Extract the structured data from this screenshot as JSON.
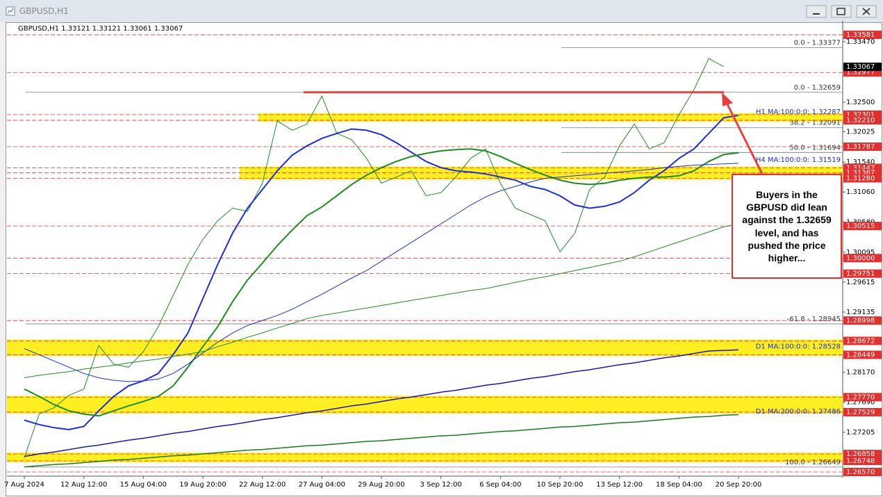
{
  "window_title": "GBPUSD,H1",
  "chart_data": {
    "type": "line",
    "header": "GBPUSD,H1  1.33121 1.33121 1.33061 1.33067",
    "categories": [
      "7 Aug 2024",
      null,
      null,
      null,
      "12 Aug 12:00",
      null,
      null,
      null,
      "15 Aug 04:00",
      null,
      null,
      null,
      "19 Aug 20:00",
      null,
      null,
      null,
      "22 Aug 12:00",
      null,
      null,
      null,
      "27 Aug 04:00",
      null,
      null,
      null,
      "29 Aug 20:00",
      null,
      null,
      null,
      "3 Sep 12:00",
      null,
      null,
      null,
      "6 Sep 04:00",
      null,
      null,
      null,
      "10 Sep 20:00",
      null,
      null,
      null,
      "13 Sep 12:00",
      null,
      null,
      null,
      "18 Sep 04:00",
      null,
      null,
      null,
      "20 Sep 20:00"
    ],
    "series": [
      {
        "color": "#1f8a1f",
        "width": 1,
        "values": [
          1.268,
          1.275,
          1.276,
          1.278,
          1.279,
          1.286,
          1.283,
          1.2825,
          1.285,
          1.289,
          1.294,
          1.299,
          1.303,
          1.306,
          1.308,
          1.3075,
          1.312,
          1.322,
          1.3205,
          1.3215,
          1.326,
          1.32,
          1.319,
          1.316,
          1.312,
          1.313,
          1.314,
          1.31,
          1.3105,
          1.313,
          1.316,
          1.3175,
          1.312,
          1.308,
          1.307,
          1.306,
          1.301,
          1.304,
          1.311,
          1.313,
          1.318,
          1.3215,
          1.3175,
          1.3185,
          1.323,
          1.327,
          1.332,
          1.3307,
          null
        ]
      },
      {
        "color": "#1c2fd0",
        "width": 2,
        "values": [
          1.274,
          1.2733,
          1.2728,
          1.2725,
          1.273,
          1.2755,
          1.2778,
          1.2795,
          1.2803,
          1.2815,
          1.2845,
          1.288,
          1.2935,
          1.299,
          1.304,
          1.308,
          1.311,
          1.314,
          1.3165,
          1.318,
          1.3192,
          1.32,
          1.3207,
          1.3205,
          1.3198,
          1.3185,
          1.317,
          1.3155,
          1.3145,
          1.314,
          1.3138,
          1.3135,
          1.313,
          1.3125,
          1.3115,
          1.311,
          1.31,
          1.3085,
          1.308,
          1.3083,
          1.309,
          1.3105,
          1.3125,
          1.314,
          1.316,
          1.3175,
          1.32,
          1.3225,
          1.3229
        ]
      },
      {
        "color": "#1f8a1f",
        "width": 2,
        "values": [
          1.279,
          1.2778,
          1.2765,
          1.2755,
          1.275,
          1.2747,
          1.2755,
          1.2763,
          1.277,
          1.2778,
          1.2795,
          1.2825,
          1.2858,
          1.289,
          1.293,
          1.2965,
          1.2992,
          1.302,
          1.3045,
          1.3068,
          1.3082,
          1.31,
          1.3118,
          1.3133,
          1.3145,
          1.3155,
          1.3163,
          1.3168,
          1.3172,
          1.3174,
          1.3175,
          1.3172,
          1.3163,
          1.3152,
          1.3142,
          1.3133,
          1.3125,
          1.312,
          1.3118,
          1.312,
          1.3125,
          1.3128,
          1.313,
          1.313,
          1.3132,
          1.314,
          1.3155,
          1.3166,
          1.3169
        ]
      },
      {
        "color": "#1c2fd0",
        "width": 1,
        "values": [
          1.2855,
          1.2845,
          1.2835,
          1.2825,
          1.2815,
          1.2808,
          1.2804,
          1.2802,
          1.2803,
          1.2806,
          1.2815,
          1.283,
          1.2848,
          1.2865,
          1.288,
          1.2892,
          1.29,
          1.2908,
          1.2918,
          1.293,
          1.2942,
          1.2955,
          1.2968,
          1.298,
          1.2995,
          1.301,
          1.3025,
          1.304,
          1.3055,
          1.307,
          1.3085,
          1.3098,
          1.3108,
          1.3115,
          1.3122,
          1.3128,
          1.313,
          1.3132,
          1.3134,
          1.3136,
          1.3138,
          1.314,
          1.3142,
          1.3145,
          1.3147,
          1.3149,
          1.315,
          1.3151,
          1.3152
        ]
      },
      {
        "color": "#1f8a1f",
        "width": 1,
        "values": [
          1.2808,
          1.2812,
          1.2815,
          1.2818,
          1.2822,
          1.2825,
          1.2828,
          1.2832,
          1.2835,
          1.2838,
          1.2842,
          1.2846,
          1.285,
          1.2858,
          1.2865,
          1.2873,
          1.288,
          1.2888,
          1.2895,
          1.2903,
          1.2908,
          1.2912,
          1.2916,
          1.292,
          1.2924,
          1.2928,
          1.2932,
          1.2936,
          1.294,
          1.2944,
          1.2948,
          1.2951,
          1.2956,
          1.2961,
          1.2966,
          1.297,
          1.2975,
          1.298,
          1.2985,
          1.299,
          1.2995,
          1.3002,
          1.301,
          1.3018,
          1.3026,
          1.3034,
          1.3042,
          1.305,
          1.3055
        ]
      },
      {
        "color": "#1a1aa0",
        "width": 1.5,
        "values": [
          1.2682,
          1.2686,
          1.2689,
          1.2693,
          1.2697,
          1.27,
          1.2704,
          1.2708,
          1.2711,
          1.2715,
          1.2719,
          1.2722,
          1.2726,
          1.273,
          1.2733,
          1.2737,
          1.2741,
          1.2744,
          1.2748,
          1.2752,
          1.2755,
          1.2759,
          1.2763,
          1.2766,
          1.277,
          1.2774,
          1.2777,
          1.2781,
          1.2785,
          1.2788,
          1.2792,
          1.2796,
          1.2799,
          1.2803,
          1.2807,
          1.281,
          1.2814,
          1.2818,
          1.2821,
          1.2825,
          1.2829,
          1.2832,
          1.2836,
          1.284,
          1.2843,
          1.2847,
          1.2851,
          1.2852,
          1.2853
        ]
      },
      {
        "color": "#1a7a1a",
        "width": 1.5,
        "values": [
          1.2665,
          1.2667,
          1.2669,
          1.267,
          1.2672,
          1.2674,
          1.2676,
          1.2677,
          1.2679,
          1.2681,
          1.2683,
          1.2684,
          1.2686,
          1.2688,
          1.269,
          1.2692,
          1.2693,
          1.2695,
          1.2697,
          1.2699,
          1.27,
          1.2702,
          1.2704,
          1.2706,
          1.2707,
          1.2709,
          1.2711,
          1.2713,
          1.2715,
          1.2716,
          1.2718,
          1.272,
          1.2722,
          1.2723,
          1.2725,
          1.2727,
          1.2729,
          1.273,
          1.2732,
          1.2734,
          1.2736,
          1.2737,
          1.2739,
          1.2741,
          1.2743,
          1.2745,
          1.2746,
          1.2748,
          1.2749
        ]
      }
    ],
    "ylim": [
      1.26503,
      1.3376
    ],
    "yticks": [
      {
        "value": 1.3347,
        "label": "1.33470"
      },
      {
        "value": 1.325,
        "label": "1.32500"
      },
      {
        "value": 1.32025,
        "label": "1.32025"
      },
      {
        "value": 1.3154,
        "label": "1.31540"
      },
      {
        "value": 1.3106,
        "label": "1.31060"
      },
      {
        "value": 1.3058,
        "label": "1.30580"
      },
      1.30095,
      1.29615,
      1.29135,
      {
        "value": 1.2817,
        "label": "1.28170"
      },
      {
        "value": 1.2769,
        "label": "1.27690"
      },
      1.27205
    ],
    "levels": [
      1.33581,
      1.32977,
      1.32301,
      1.3221,
      1.31787,
      1.31447,
      1.31367,
      1.3128,
      1.30515,
      1.3,
      1.29751,
      1.28998,
      1.28672,
      1.28449,
      1.2777,
      1.27529,
      1.26858,
      1.26748,
      1.2657
    ],
    "level_labels": [
      "1.33581",
      "1.32977",
      "1.32301",
      "1.32210",
      "1.31787",
      "1.31447",
      "1.31367",
      "1.31280",
      "1.30515",
      "1.30000",
      "1.29751",
      "1.28998",
      "1.28672",
      "1.28449",
      "1.27770",
      "1.27529",
      "1.26858",
      "1.26748",
      "1.26570"
    ],
    "level_color": "#e03030",
    "current_price": {
      "value": 1.33067,
      "label": "1.33067"
    },
    "zones": [
      [
        1.3221,
        1.32301
      ],
      [
        1.3128,
        1.31447
      ],
      [
        1.28449,
        1.28672
      ],
      [
        1.27529,
        1.2777
      ],
      [
        1.26748,
        1.26858
      ]
    ],
    "zone_color": "#ffee22",
    "fib": [
      {
        "value": 1.33377,
        "label": "0.0 - 1.33377"
      },
      {
        "value": 1.32659,
        "label": "0.0 - 1.32659"
      },
      {
        "value": 1.32091,
        "label": "38.2 - 1.32091"
      },
      {
        "value": 1.31694,
        "label": "50.0 - 1.31694"
      },
      {
        "value": 1.28945,
        "label": "-61.8 - 1.28945"
      },
      {
        "value": 1.26649,
        "label": "100.0 - 1.26649"
      }
    ],
    "ma_labels": [
      {
        "value": 1.32287,
        "label": "H1 MA:100:0:0: 1.32287"
      },
      {
        "value": 1.31519,
        "label": "H4 MA:100:0:0: 1.31519"
      },
      {
        "value": 1.28528,
        "label": "D1 MA:100:0:0: 1.28528"
      },
      {
        "value": 1.27486,
        "label": "D1 MA:200:0:0: 1.27486"
      }
    ],
    "key_level": 1.32659,
    "annotation": "Buyers in the GBPUSD did lean against the 1.32659 level, and has pushed the price higher..."
  }
}
